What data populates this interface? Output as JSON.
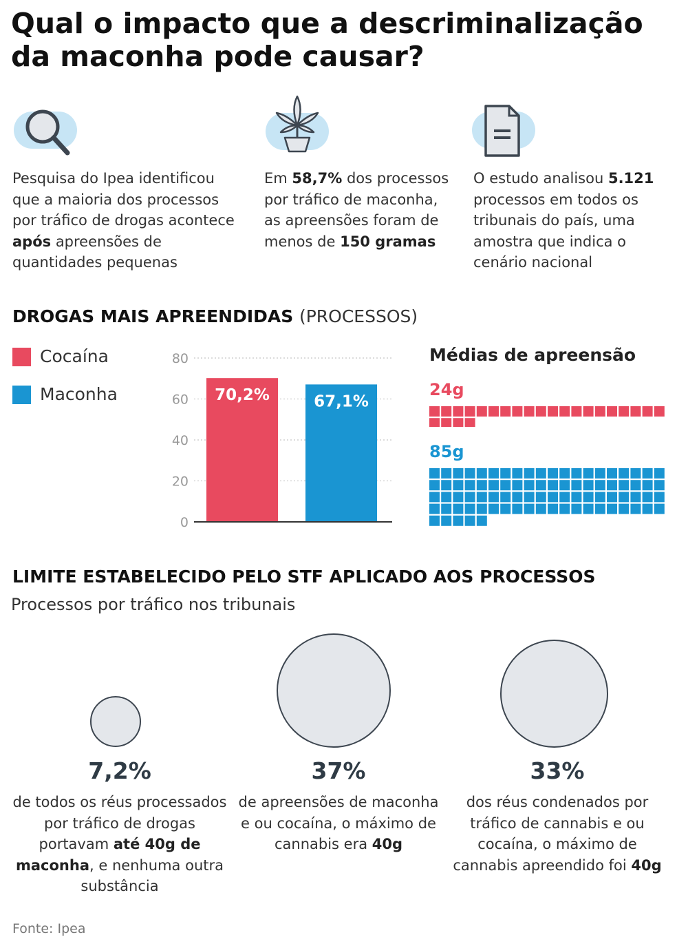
{
  "title": "Qual o impacto que a descriminalização da maconha pode causar?",
  "colors": {
    "cocaina": "#e84a5f",
    "maconha": "#1a95d2",
    "icon_bg": "#c7e5f5",
    "bubble_fill": "#e4e7eb",
    "bubble_stroke": "#3d4650"
  },
  "facts": [
    {
      "icon": "magnifier-icon",
      "segments": [
        {
          "t": "Pesquisa do Ipea identificou que a maioria dos processos por tráfico de drogas acontece ",
          "b": false
        },
        {
          "t": "após",
          "b": true
        },
        {
          "t": " apreensões de quantidades pequenas",
          "b": false
        }
      ]
    },
    {
      "icon": "cannabis-plant-icon",
      "segments": [
        {
          "t": "Em ",
          "b": false
        },
        {
          "t": "58,7%",
          "b": true
        },
        {
          "t": " dos processos por tráfico de maconha, as apreensões foram de menos de ",
          "b": false
        },
        {
          "t": "150 gramas",
          "b": true
        }
      ]
    },
    {
      "icon": "document-icon",
      "segments": [
        {
          "t": "O estudo analisou ",
          "b": false
        },
        {
          "t": "5.121",
          "b": true
        },
        {
          "t": " processos em todos os tribunais do país, uma amostra que indica o cenário nacional",
          "b": false
        }
      ]
    }
  ],
  "drugs_section": {
    "heading": "DROGAS MAIS APREENDIDAS",
    "heading_sub": "(PROCESSOS)"
  },
  "legend": [
    {
      "label": "Cocaína",
      "color": "#e84a5f"
    },
    {
      "label": "Maconha",
      "color": "#1a95d2"
    }
  ],
  "chart_data": [
    {
      "type": "bar",
      "categories": [
        "Cocaína",
        "Maconha"
      ],
      "values": [
        70.2,
        67.1
      ],
      "labels": [
        "70,2%",
        "67,1%"
      ],
      "colors": [
        "#e84a5f",
        "#1a95d2"
      ],
      "ylim": [
        0,
        80
      ],
      "yticks": [
        0,
        20,
        40,
        60,
        80
      ],
      "grid": true,
      "legend": "left"
    },
    {
      "type": "waffle",
      "title": "Médias de apreensão",
      "series": [
        {
          "name": "Cocaína",
          "label": "24g",
          "value": 24,
          "color": "#e84a5f"
        },
        {
          "name": "Maconha",
          "label": "85g",
          "value": 85,
          "color": "#1a95d2"
        }
      ]
    }
  ],
  "stf_section": {
    "heading": "LIMITE ESTABELECIDO PELO STF APLICADO AOS PROCESSOS",
    "subheading": "Processos por tráfico nos tribunais",
    "items": [
      {
        "value": 7.2,
        "pct": "7,2%",
        "segments": [
          {
            "t": "de todos os réus processados por tráfico de drogas portavam ",
            "b": false
          },
          {
            "t": "até 40g de maconha",
            "b": true
          },
          {
            "t": ", e nenhuma outra substância",
            "b": false
          }
        ]
      },
      {
        "value": 37,
        "pct": "37%",
        "segments": [
          {
            "t": "de apreensões de maconha e ou cocaína, o máximo de cannabis era ",
            "b": false
          },
          {
            "t": "40g",
            "b": true
          }
        ]
      },
      {
        "value": 33,
        "pct": "33%",
        "segments": [
          {
            "t": "dos réus condenados por tráfico de cannabis e ou cocaína, o máximo de cannabis apreendido foi ",
            "b": false
          },
          {
            "t": "40g",
            "b": true
          }
        ]
      }
    ]
  },
  "source": "Fonte: Ipea"
}
